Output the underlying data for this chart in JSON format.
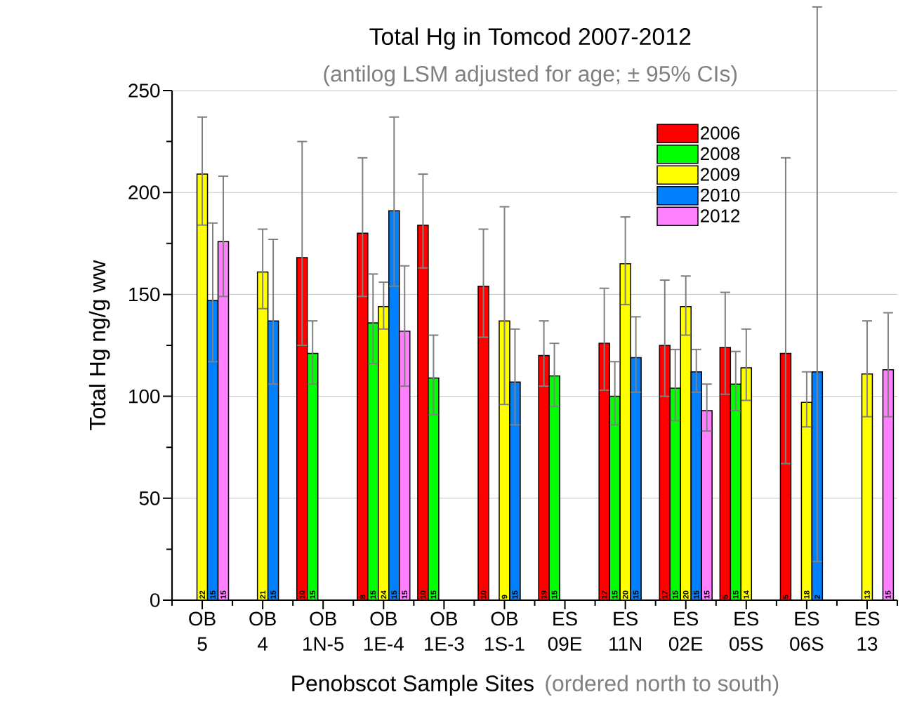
{
  "chart_data": {
    "type": "bar",
    "title": "Total Hg in Tomcod  2007-2012",
    "subtitle": "(antilog LSM adjusted for age; ± 95% CIs)",
    "xlabel": "Penobscot Sample Sites",
    "ylabel": "Total Hg ng/g ww",
    "categories": [
      "OB 5",
      "OB 4",
      "OB 1N-5",
      "OB 1E-4",
      "OB 1E-3",
      "OB 1S-1",
      "ES 09E",
      "ES 11N",
      "ES 02E",
      "ES 05S",
      "ES 06S",
      "ES 13"
    ],
    "series": [
      {
        "name": "2006",
        "color": "#ff0000",
        "values": [
          null,
          null,
          168,
          180,
          184,
          154,
          120,
          126,
          125,
          124,
          121,
          null
        ],
        "errors": [
          null,
          null,
          [
            125,
            225
          ],
          [
            149,
            217
          ],
          [
            163,
            209
          ],
          [
            129,
            182
          ],
          [
            105,
            137
          ],
          [
            103,
            153
          ],
          [
            100,
            157
          ],
          [
            101,
            151
          ],
          [
            67,
            217
          ],
          null
        ]
      },
      {
        "name": "2008",
        "color": "#00ff00",
        "values": [
          null,
          null,
          121,
          136,
          109,
          null,
          110,
          100,
          104,
          106,
          null,
          null
        ],
        "errors": [
          null,
          null,
          [
            106,
            137
          ],
          [
            116,
            160
          ],
          [
            91,
            130
          ],
          null,
          [
            95,
            126
          ],
          [
            86,
            117
          ],
          [
            88,
            123
          ],
          [
            93,
            122
          ],
          null,
          null
        ]
      },
      {
        "name": "2009",
        "color": "#ffff00",
        "values": [
          209,
          161,
          null,
          144,
          null,
          137,
          null,
          165,
          144,
          114,
          97,
          111
        ],
        "errors": [
          [
            184,
            237
          ],
          [
            143,
            182
          ],
          null,
          [
            133,
            156
          ],
          null,
          [
            96,
            193
          ],
          null,
          [
            145,
            188
          ],
          [
            130,
            159
          ],
          [
            98,
            133
          ],
          [
            85,
            112
          ],
          [
            90,
            137
          ]
        ]
      },
      {
        "name": "2010",
        "color": "#0080ff",
        "values": [
          147,
          137,
          null,
          191,
          null,
          107,
          null,
          119,
          112,
          null,
          112,
          null
        ],
        "errors": [
          [
            117,
            185
          ],
          [
            106,
            177
          ],
          null,
          [
            154,
            237
          ],
          null,
          [
            86,
            133
          ],
          null,
          [
            102,
            139
          ],
          [
            102,
            123
          ],
          null,
          [
            19,
            291
          ],
          null
        ]
      },
      {
        "name": "2012",
        "color": "#ff80ff",
        "values": [
          176,
          null,
          null,
          132,
          null,
          null,
          null,
          null,
          93,
          null,
          null,
          113
        ],
        "errors": [
          [
            149,
            208
          ],
          null,
          null,
          [
            105,
            164
          ],
          null,
          null,
          null,
          null,
          [
            83,
            106
          ],
          null,
          null,
          [
            90,
            141
          ]
        ]
      }
    ],
    "annotations": [
      "(ordered north to south)",
      "22",
      "15",
      "15",
      "21",
      "15",
      "10",
      "15",
      "8",
      "15",
      "24",
      "15",
      "15",
      "10",
      "15",
      "10",
      "9",
      "15",
      "19",
      "15",
      "17",
      "15",
      "20",
      "15",
      "17",
      "15",
      "20",
      "15",
      "15",
      "5",
      "15",
      "14",
      "5",
      "18",
      "2",
      "13",
      "15"
    ],
    "ylim": [
      0,
      250
    ],
    "yticks": [
      0,
      50,
      100,
      150,
      200,
      250
    ],
    "grid": "y",
    "legend": "top right"
  }
}
